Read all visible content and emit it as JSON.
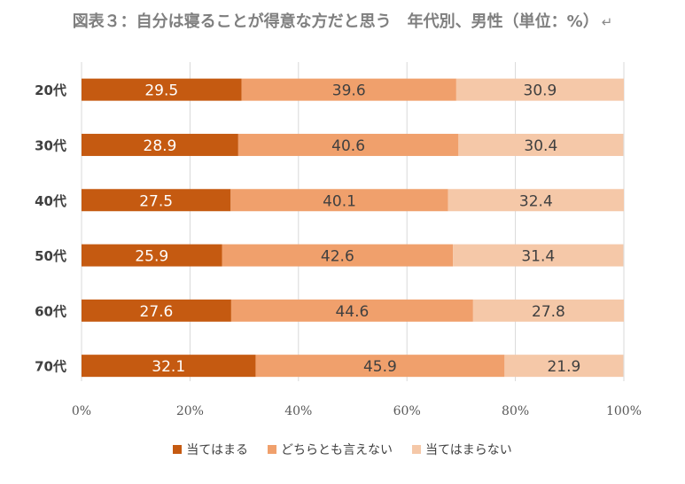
{
  "title": "図表３：自分は寝ることが得意な方だと思う　年代別、男性（単位：%）",
  "return_mark": "↵",
  "chart_data": {
    "type": "bar",
    "orientation": "horizontal",
    "stacked": true,
    "title": "図表３：自分は寝ることが得意な方だと思う　年代別、男性（単位：%）",
    "categories": [
      "20代",
      "30代",
      "40代",
      "50代",
      "60代",
      "70代"
    ],
    "series": [
      {
        "name": "当てはまる",
        "color": "#C55A11",
        "label_color": "#ffffff",
        "values": [
          29.5,
          28.9,
          27.5,
          25.9,
          27.6,
          32.1
        ]
      },
      {
        "name": "どちらとも言えない",
        "color": "#F0A06C",
        "label_color": "#404040",
        "values": [
          39.6,
          40.6,
          40.1,
          42.6,
          44.6,
          45.9
        ]
      },
      {
        "name": "当てはまらない",
        "color": "#F5C8A8",
        "label_color": "#404040",
        "values": [
          30.9,
          30.4,
          32.4,
          31.4,
          27.8,
          21.9
        ]
      }
    ],
    "xlim": [
      0,
      100
    ],
    "xticks": [
      "0%",
      "20%",
      "40%",
      "60%",
      "80%",
      "100%"
    ],
    "grid": true,
    "legend": "bottom"
  }
}
